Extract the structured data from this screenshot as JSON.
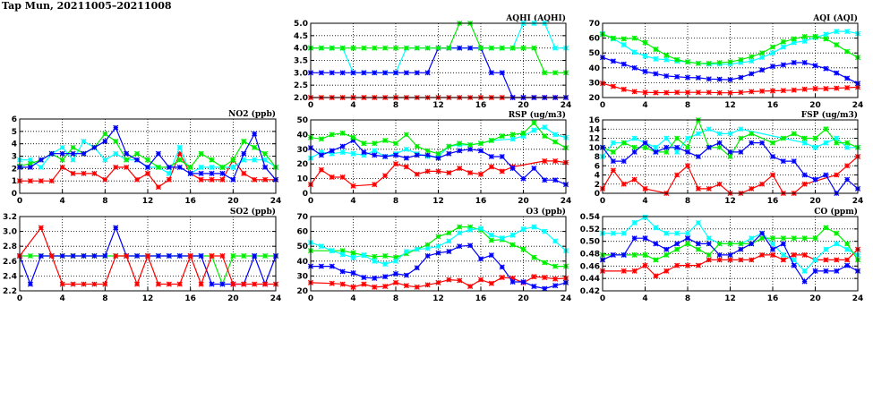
{
  "title": "Tap Mun, 20211005–20211008",
  "series_colors": {
    "red": "#ff0000",
    "green": "#00ee00",
    "blue": "#0000ff",
    "cyan": "#00ffff"
  },
  "chart_data": [
    {
      "id": "no2",
      "type": "line",
      "title": "NO2 (ppb)",
      "ylim": [
        0,
        6
      ],
      "yticks": [
        "0",
        "1",
        "2",
        "3",
        "4",
        "5",
        "6"
      ],
      "xlim": [
        0,
        24
      ],
      "xticks": [
        "0",
        "4",
        "8",
        "12",
        "16",
        "20",
        "24"
      ],
      "grid": true,
      "series": [
        {
          "name": "red",
          "values": [
            1,
            1,
            1,
            1,
            2.1,
            1.6,
            1.6,
            1.6,
            1.1,
            2.1,
            2.1,
            1.1,
            1.6,
            0.5,
            1.1,
            3.2,
            1.6,
            1.1,
            1.1,
            1.1,
            2.7,
            1.6,
            1.1,
            1.1,
            1.1
          ]
        },
        {
          "name": "cyan",
          "values": [
            2.7,
            2.7,
            2.1,
            3.2,
            3.7,
            2.7,
            4.2,
            3.7,
            2.7,
            3.2,
            2.7,
            2.7,
            2.1,
            2.1,
            1.6,
            3.7,
            1.6,
            2.1,
            2.1,
            2.1,
            2.1,
            2.7,
            2.7,
            2.7,
            2.1
          ]
        },
        {
          "name": "green",
          "values": [
            2.2,
            2.4,
            2.7,
            3.2,
            2.7,
            3.7,
            3.2,
            3.7,
            4.8,
            4.2,
            2.7,
            3.2,
            2.7,
            2.1,
            2.1,
            2.7,
            2.1,
            3.2,
            2.7,
            2.1,
            2.7,
            4.2,
            3.7,
            3.2,
            2.1
          ]
        },
        {
          "name": "blue",
          "values": [
            2.1,
            2.1,
            2.7,
            3.2,
            3.2,
            3.2,
            3.2,
            3.7,
            4.2,
            5.3,
            3.2,
            2.7,
            2.1,
            3.2,
            2.1,
            2.1,
            1.6,
            1.6,
            1.6,
            1.6,
            1.1,
            3.2,
            4.8,
            2.1,
            1.1
          ]
        }
      ]
    },
    {
      "id": "so2",
      "type": "line",
      "title": "SO2 (ppb)",
      "ylim": [
        2.2,
        3.2
      ],
      "yticks": [
        "2.2",
        "2.4",
        "2.6",
        "2.8",
        "3.0",
        "3.2"
      ],
      "xlim": [
        0,
        24
      ],
      "xticks": [
        "0",
        "4",
        "8",
        "12",
        "16",
        "20",
        "24"
      ],
      "grid": true,
      "series": [
        {
          "name": "green",
          "values": [
            2.67,
            2.67,
            2.67,
            2.67,
            2.67,
            2.67,
            2.67,
            2.67,
            2.67,
            2.67,
            2.67,
            2.67,
            2.67,
            2.67,
            2.67,
            2.67,
            2.67,
            2.67,
            2.67,
            2.29,
            2.67,
            2.67,
            2.67,
            2.67,
            2.67
          ]
        },
        {
          "name": "blue",
          "values": [
            2.67,
            2.29,
            2.67,
            2.67,
            2.67,
            2.67,
            2.67,
            2.67,
            2.67,
            3.05,
            2.67,
            2.67,
            2.67,
            2.67,
            2.67,
            2.67,
            2.67,
            2.67,
            2.29,
            2.29,
            2.29,
            2.29,
            2.67,
            2.29,
            2.67
          ]
        },
        {
          "name": "red",
          "values": [
            2.67,
            null,
            3.05,
            2.67,
            2.29,
            2.29,
            2.29,
            2.29,
            2.29,
            2.67,
            2.67,
            2.29,
            2.67,
            2.29,
            2.29,
            2.29,
            2.67,
            2.29,
            2.67,
            2.67,
            2.29,
            2.29,
            2.29,
            2.29,
            2.29
          ]
        }
      ]
    },
    {
      "id": "aqhi",
      "type": "line",
      "title": "AQHI (AQHI)",
      "ylim": [
        2,
        5
      ],
      "yticks": [
        "2.0",
        "2.5",
        "3.0",
        "3.5",
        "4.0",
        "4.5",
        "5.0"
      ],
      "xlim": [
        0,
        24
      ],
      "xticks": [
        "0",
        "4",
        "8",
        "12",
        "16",
        "20",
        "24"
      ],
      "grid": true,
      "series": [
        {
          "name": "red",
          "values": [
            2,
            2,
            2,
            2,
            2,
            2,
            2,
            2,
            2,
            2,
            2,
            2,
            2,
            2,
            2,
            2,
            2,
            2,
            2,
            2,
            2,
            2,
            2,
            2,
            2
          ]
        },
        {
          "name": "cyan",
          "values": [
            4,
            4,
            4,
            4,
            3,
            3,
            3,
            3,
            3,
            4,
            4,
            4,
            4,
            4,
            4,
            4,
            4,
            4,
            4,
            4,
            5,
            5,
            5,
            4,
            4
          ]
        },
        {
          "name": "blue",
          "values": [
            3,
            3,
            3,
            3,
            3,
            3,
            3,
            3,
            3,
            3,
            3,
            3,
            4,
            4,
            4,
            4,
            4,
            3,
            3,
            2,
            2,
            2,
            2,
            2,
            2
          ]
        },
        {
          "name": "green",
          "values": [
            4,
            4,
            4,
            4,
            4,
            4,
            4,
            4,
            4,
            4,
            4,
            4,
            4,
            4,
            5,
            5,
            4,
            4,
            4,
            4,
            4,
            4,
            3,
            3,
            3
          ]
        }
      ]
    },
    {
      "id": "rsp",
      "type": "line",
      "title": "RSP (ug/m3)",
      "ylim": [
        0,
        50
      ],
      "yticks": [
        "0",
        "10",
        "20",
        "30",
        "40",
        "50"
      ],
      "xlim": [
        0,
        24
      ],
      "xticks": [
        "0",
        "4",
        "8",
        "12",
        "16",
        "20",
        "24"
      ],
      "grid": true,
      "series": [
        {
          "name": "red",
          "values": [
            6,
            16,
            11,
            11,
            5,
            null,
            6,
            12,
            20,
            18,
            13,
            15,
            15,
            14,
            17,
            14,
            13,
            18,
            15,
            18,
            null,
            null,
            22,
            22,
            21
          ]
        },
        {
          "name": "cyan",
          "values": [
            24,
            28,
            27,
            28,
            27,
            26,
            29,
            25,
            27,
            30,
            27,
            25,
            25,
            32,
            33,
            33,
            34,
            36,
            null,
            37,
            39,
            43,
            45,
            40,
            38
          ]
        },
        {
          "name": "blue",
          "values": [
            31,
            26,
            29,
            32,
            36,
            28,
            26,
            25,
            26,
            24,
            26,
            26,
            24,
            27,
            29,
            30,
            29,
            25,
            25,
            17,
            10,
            17,
            9,
            9,
            6
          ]
        },
        {
          "name": "green",
          "values": [
            38,
            37,
            40,
            41,
            38,
            34,
            34,
            36,
            34,
            40,
            32,
            29,
            27,
            32,
            34,
            33,
            34,
            36,
            39,
            40,
            41,
            48,
            39,
            35,
            31
          ]
        }
      ]
    },
    {
      "id": "o3",
      "type": "line",
      "title": "O3 (ppb)",
      "ylim": [
        20,
        70
      ],
      "yticks": [
        "20",
        "30",
        "40",
        "50",
        "60",
        "70"
      ],
      "xlim": [
        0,
        24
      ],
      "xticks": [
        "0",
        "4",
        "8",
        "12",
        "16",
        "20",
        "24"
      ],
      "grid": true,
      "series": [
        {
          "name": "red",
          "values": [
            25.5,
            null,
            25,
            24.5,
            22.5,
            24.5,
            22.5,
            23,
            25.5,
            23.5,
            22.5,
            24,
            25.5,
            27.5,
            27,
            23,
            27.5,
            25,
            29,
            28.5,
            25.5,
            29.5,
            29,
            28,
            28.5
          ]
        },
        {
          "name": "blue",
          "values": [
            36.5,
            36.5,
            36.5,
            33,
            32,
            29,
            28.5,
            29.5,
            31.5,
            30.5,
            35.5,
            43.5,
            45.5,
            46.5,
            50,
            50.5,
            41.5,
            44,
            36,
            26,
            26,
            23,
            21.5,
            23.5,
            25.5
          ]
        },
        {
          "name": "green",
          "values": [
            47,
            null,
            47,
            47,
            45.5,
            44,
            43,
            43.5,
            42.5,
            45,
            48,
            51,
            56.5,
            59,
            63,
            63,
            61,
            54,
            54.5,
            51,
            48,
            42.5,
            39,
            36.5,
            36.5
          ]
        },
        {
          "name": "cyan",
          "values": [
            52.5,
            50,
            47,
            44.5,
            42.5,
            44,
            40,
            38,
            40,
            46.5,
            48,
            48.5,
            50,
            53.5,
            59,
            61,
            62,
            57.5,
            55.5,
            57.5,
            61.5,
            63,
            60,
            53.5,
            47
          ]
        }
      ]
    },
    {
      "id": "aqi",
      "type": "line",
      "title": "AQI (AQI)",
      "ylim": [
        20,
        70
      ],
      "yticks": [
        "20",
        "30",
        "40",
        "50",
        "60",
        "70"
      ],
      "xlim": [
        0,
        24
      ],
      "xticks": [
        "0",
        "4",
        "8",
        "12",
        "16",
        "20",
        "24"
      ],
      "grid": true,
      "series": [
        {
          "name": "red",
          "values": [
            29.5,
            27.5,
            25.5,
            24,
            23.5,
            23.3,
            23.3,
            23.5,
            23.5,
            23.5,
            23.5,
            23.2,
            23.2,
            23.5,
            24,
            24.3,
            24.5,
            24.7,
            25,
            25.6,
            26,
            26,
            26.3,
            26.6,
            27
          ]
        },
        {
          "name": "blue",
          "values": [
            47,
            44.5,
            42.5,
            40,
            37.5,
            36,
            34.5,
            34,
            33.5,
            33.3,
            32.5,
            32.3,
            32,
            33.5,
            36,
            38.5,
            41,
            42,
            43.5,
            43.5,
            41.5,
            39.5,
            36.5,
            33,
            29.5
          ]
        },
        {
          "name": "cyan",
          "values": [
            63,
            59.5,
            55.5,
            50.5,
            48,
            46,
            45.5,
            44.5,
            44,
            43,
            42.5,
            42.5,
            42.5,
            43.5,
            44.5,
            47,
            50,
            54,
            57,
            58,
            60.5,
            62.5,
            64.5,
            64.5,
            63
          ]
        },
        {
          "name": "green",
          "values": [
            62.5,
            60,
            59.5,
            60,
            57,
            52.5,
            48.5,
            45.5,
            44,
            43,
            43,
            43.5,
            44,
            45.5,
            47.5,
            50,
            54,
            57.5,
            59.5,
            61,
            61,
            59.5,
            55.5,
            51,
            47
          ]
        }
      ]
    },
    {
      "id": "fsp",
      "type": "line",
      "title": "FSP (ug/m3)",
      "ylim": [
        0,
        16
      ],
      "yticks": [
        "0",
        "2",
        "4",
        "6",
        "8",
        "10",
        "12",
        "14",
        "16"
      ],
      "xlim": [
        0,
        24
      ],
      "xticks": [
        "0",
        "4",
        "8",
        "12",
        "16",
        "20",
        "24"
      ],
      "grid": true,
      "series": [
        {
          "name": "red",
          "values": [
            1,
            5,
            2,
            3,
            1,
            null,
            0,
            4,
            6,
            1,
            1,
            2,
            0,
            0,
            1,
            2,
            4,
            0,
            0,
            2,
            null,
            null,
            4,
            6,
            8
          ]
        },
        {
          "name": "cyan",
          "values": [
            8,
            11,
            11,
            12,
            11,
            10,
            12,
            9,
            12,
            13,
            14,
            13,
            13,
            14,
            null,
            null,
            null,
            null,
            null,
            11,
            10,
            11,
            12,
            10,
            10
          ]
        },
        {
          "name": "green",
          "values": [
            10,
            9,
            11,
            10,
            10,
            9,
            9,
            12,
            10,
            16,
            10,
            10,
            8,
            12,
            13,
            null,
            11,
            12,
            13,
            12,
            12,
            14,
            11,
            11,
            10
          ]
        },
        {
          "name": "blue",
          "values": [
            10,
            7,
            7,
            9,
            11,
            9,
            10,
            10,
            9,
            8,
            10,
            11,
            9,
            9,
            11,
            11,
            8,
            7,
            7,
            4,
            3,
            4,
            0,
            3,
            1
          ]
        }
      ]
    },
    {
      "id": "co",
      "type": "line",
      "title": "CO (ppm)",
      "ylim": [
        0.42,
        0.54
      ],
      "yticks": [
        "0.42",
        "0.44",
        "0.46",
        "0.48",
        "0.50",
        "0.52",
        "0.54"
      ],
      "xlim": [
        0,
        24
      ],
      "xticks": [
        "0",
        "4",
        "8",
        "12",
        "16",
        "20",
        "24"
      ],
      "grid": true,
      "series": [
        {
          "name": "red",
          "values": [
            0.452,
            null,
            0.452,
            0.452,
            0.461,
            0.444,
            0.452,
            0.461,
            0.461,
            0.461,
            0.47,
            0.47,
            0.47,
            0.47,
            0.47,
            0.478,
            0.478,
            0.47,
            0.478,
            0.478,
            0.47,
            0.47,
            0.47,
            0.47,
            0.487
          ]
        },
        {
          "name": "cyan",
          "values": [
            0.513,
            0.513,
            0.513,
            0.53,
            0.539,
            0.522,
            0.513,
            0.513,
            0.513,
            0.53,
            0.505,
            0.496,
            0.496,
            0.496,
            0.505,
            0.513,
            0.496,
            0.478,
            0.47,
            0.452,
            0.47,
            0.487,
            0.496,
            0.487,
            0.478
          ]
        },
        {
          "name": "green",
          "values": [
            0.478,
            null,
            0.478,
            0.478,
            0.478,
            0.47,
            0.478,
            0.487,
            0.496,
            0.487,
            0.478,
            0.496,
            0.496,
            0.496,
            0.496,
            0.505,
            0.505,
            0.505,
            0.505,
            0.505,
            0.505,
            0.522,
            0.513,
            0.496,
            0.47
          ]
        },
        {
          "name": "blue",
          "values": [
            0.47,
            0.478,
            0.478,
            0.505,
            0.505,
            0.496,
            0.487,
            0.496,
            0.505,
            0.496,
            0.496,
            0.478,
            0.478,
            0.487,
            0.496,
            0.513,
            0.487,
            0.496,
            0.461,
            0.435,
            0.452,
            0.452,
            0.452,
            0.461,
            0.452
          ]
        }
      ]
    }
  ]
}
